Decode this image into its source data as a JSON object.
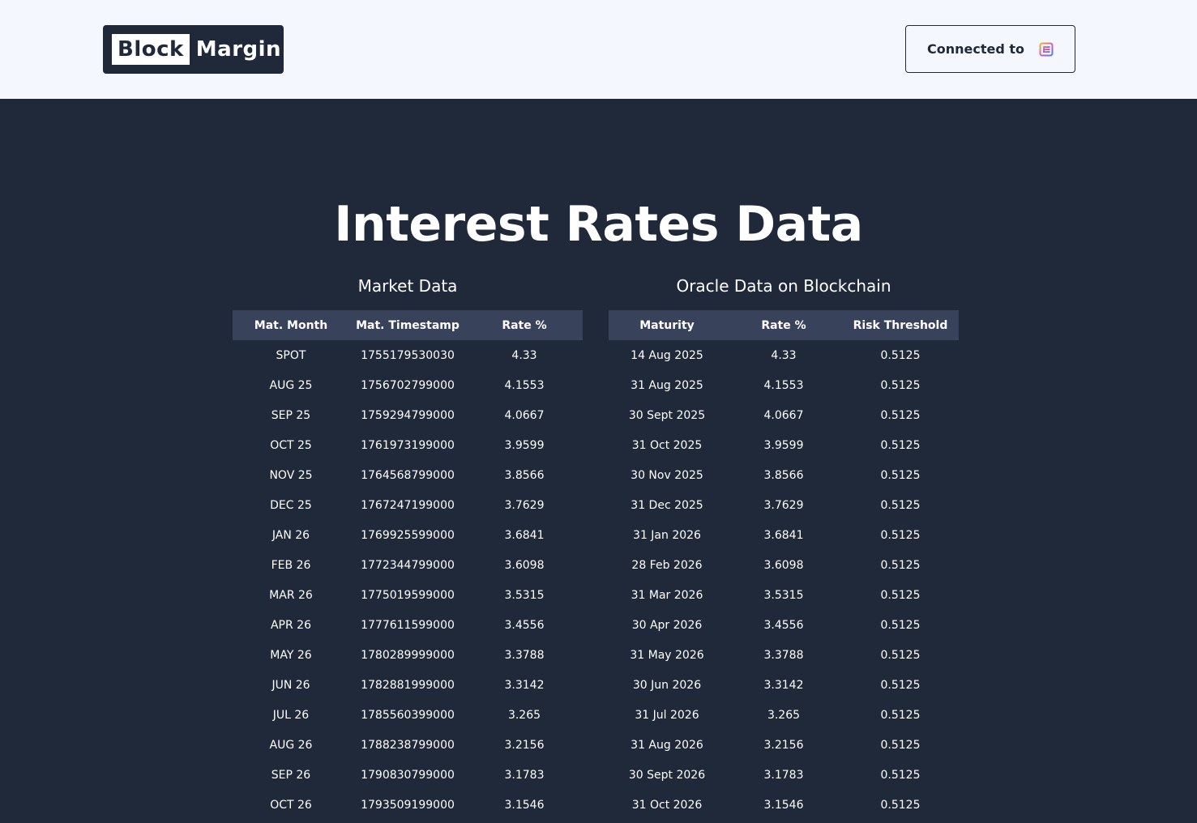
{
  "header": {
    "logo": {
      "word1": "Block",
      "word2": "Margin"
    },
    "connect_button": {
      "label": "Connected to",
      "wallet_icon": "wallet-icon"
    }
  },
  "main": {
    "title": "Interest Rates Data",
    "market": {
      "caption": "Market Data",
      "columns": [
        "Mat. Month",
        "Mat. Timestamp",
        "Rate %"
      ],
      "rows": [
        [
          "SPOT",
          "1755179530030",
          "4.33"
        ],
        [
          "AUG 25",
          "1756702799000",
          "4.1553"
        ],
        [
          "SEP 25",
          "1759294799000",
          "4.0667"
        ],
        [
          "OCT 25",
          "1761973199000",
          "3.9599"
        ],
        [
          "NOV 25",
          "1764568799000",
          "3.8566"
        ],
        [
          "DEC 25",
          "1767247199000",
          "3.7629"
        ],
        [
          "JAN 26",
          "1769925599000",
          "3.6841"
        ],
        [
          "FEB 26",
          "1772344799000",
          "3.6098"
        ],
        [
          "MAR 26",
          "1775019599000",
          "3.5315"
        ],
        [
          "APR 26",
          "1777611599000",
          "3.4556"
        ],
        [
          "MAY 26",
          "1780289999000",
          "3.3788"
        ],
        [
          "JUN 26",
          "1782881999000",
          "3.3142"
        ],
        [
          "JUL 26",
          "1785560399000",
          "3.265"
        ],
        [
          "AUG 26",
          "1788238799000",
          "3.2156"
        ],
        [
          "SEP 26",
          "1790830799000",
          "3.1783"
        ],
        [
          "OCT 26",
          "1793509199000",
          "3.1546"
        ]
      ]
    },
    "oracle": {
      "caption": "Oracle Data on Blockchain",
      "columns": [
        "Maturity",
        "Rate %",
        "Risk Threshold"
      ],
      "rows": [
        [
          "14 Aug 2025",
          "4.33",
          "0.5125"
        ],
        [
          "31 Aug 2025",
          "4.1553",
          "0.5125"
        ],
        [
          "30 Sept 2025",
          "4.0667",
          "0.5125"
        ],
        [
          "31 Oct 2025",
          "3.9599",
          "0.5125"
        ],
        [
          "30 Nov 2025",
          "3.8566",
          "0.5125"
        ],
        [
          "31 Dec 2025",
          "3.7629",
          "0.5125"
        ],
        [
          "31 Jan 2026",
          "3.6841",
          "0.5125"
        ],
        [
          "28 Feb 2026",
          "3.6098",
          "0.5125"
        ],
        [
          "31 Mar 2026",
          "3.5315",
          "0.5125"
        ],
        [
          "30 Apr 2026",
          "3.4556",
          "0.5125"
        ],
        [
          "31 May 2026",
          "3.3788",
          "0.5125"
        ],
        [
          "30 Jun 2026",
          "3.3142",
          "0.5125"
        ],
        [
          "31 Jul 2026",
          "3.265",
          "0.5125"
        ],
        [
          "31 Aug 2026",
          "3.2156",
          "0.5125"
        ],
        [
          "30 Sept 2026",
          "3.1783",
          "0.5125"
        ],
        [
          "31 Oct 2026",
          "3.1546",
          "0.5125"
        ]
      ]
    }
  },
  "colors": {
    "background": "#20293a",
    "topbar": "#f4f7fe",
    "table_header": "#38425a",
    "text": "#ffffff"
  }
}
